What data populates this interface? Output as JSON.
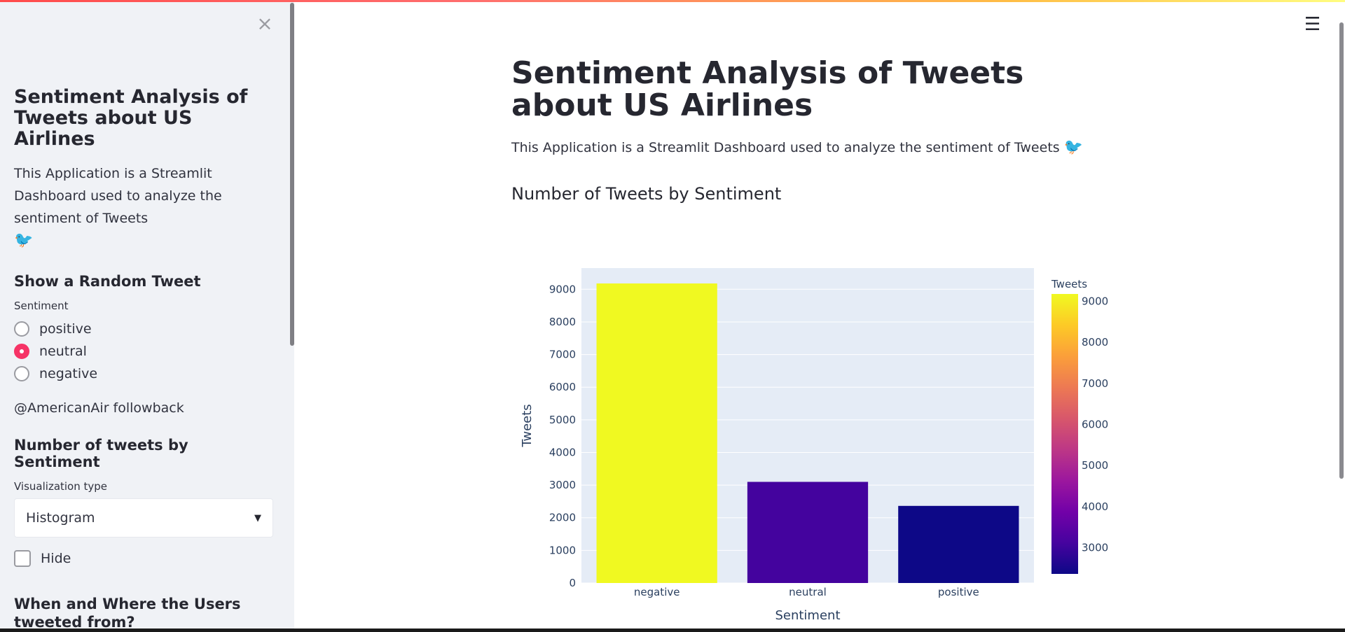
{
  "sidebar": {
    "close_icon": "close-icon",
    "title": "Sentiment Analysis of Tweets about US Airlines",
    "description": "This Application is a Streamlit Dashboard used to analyze the sentiment of Tweets",
    "emoji": "🐦",
    "random_tweet": {
      "heading": "Show a Random Tweet",
      "label": "Sentiment",
      "options": [
        "positive",
        "neutral",
        "negative"
      ],
      "selected": "neutral",
      "tweet": "@AmericanAir followback"
    },
    "tweets_by_sentiment": {
      "heading": "Number of tweets by Sentiment",
      "viz_label": "Visualization type",
      "viz_value": "Histogram",
      "hide_label": "Hide"
    },
    "when_where": {
      "heading": "When and Where the Users tweeted from?"
    }
  },
  "main": {
    "menu_icon": "hamburger-menu-icon",
    "title": "Sentiment Analysis of Tweets about US Airlines",
    "description": "This Application is a Streamlit Dashboard used to analyze the sentiment of Tweets",
    "emoji": "🐦",
    "chart_heading": "Number of Tweets by Sentiment"
  },
  "colors": {
    "accent": "#f63366",
    "plot_bg": "#e5ecf6",
    "sidebar_bg": "#f0f2f6"
  },
  "chart_data": {
    "type": "bar",
    "categories": [
      "negative",
      "neutral",
      "positive"
    ],
    "values": [
      9178,
      3099,
      2363
    ],
    "xlabel": "Sentiment",
    "ylabel": "Tweets",
    "ylim": [
      0,
      9650
    ],
    "yticks": [
      0,
      1000,
      2000,
      3000,
      4000,
      5000,
      6000,
      7000,
      8000,
      9000
    ],
    "grid": true,
    "colorbar": {
      "title": "Tweets",
      "ticks": [
        3000,
        4000,
        5000,
        6000,
        7000,
        8000,
        9000
      ],
      "range": [
        2363,
        9178
      ],
      "colorscale": [
        "#0d0887",
        "#46039f",
        "#7201a8",
        "#9c179e",
        "#bd3786",
        "#d8576b",
        "#ed7953",
        "#fb9f3a",
        "#fdca26",
        "#f0f921"
      ]
    }
  }
}
